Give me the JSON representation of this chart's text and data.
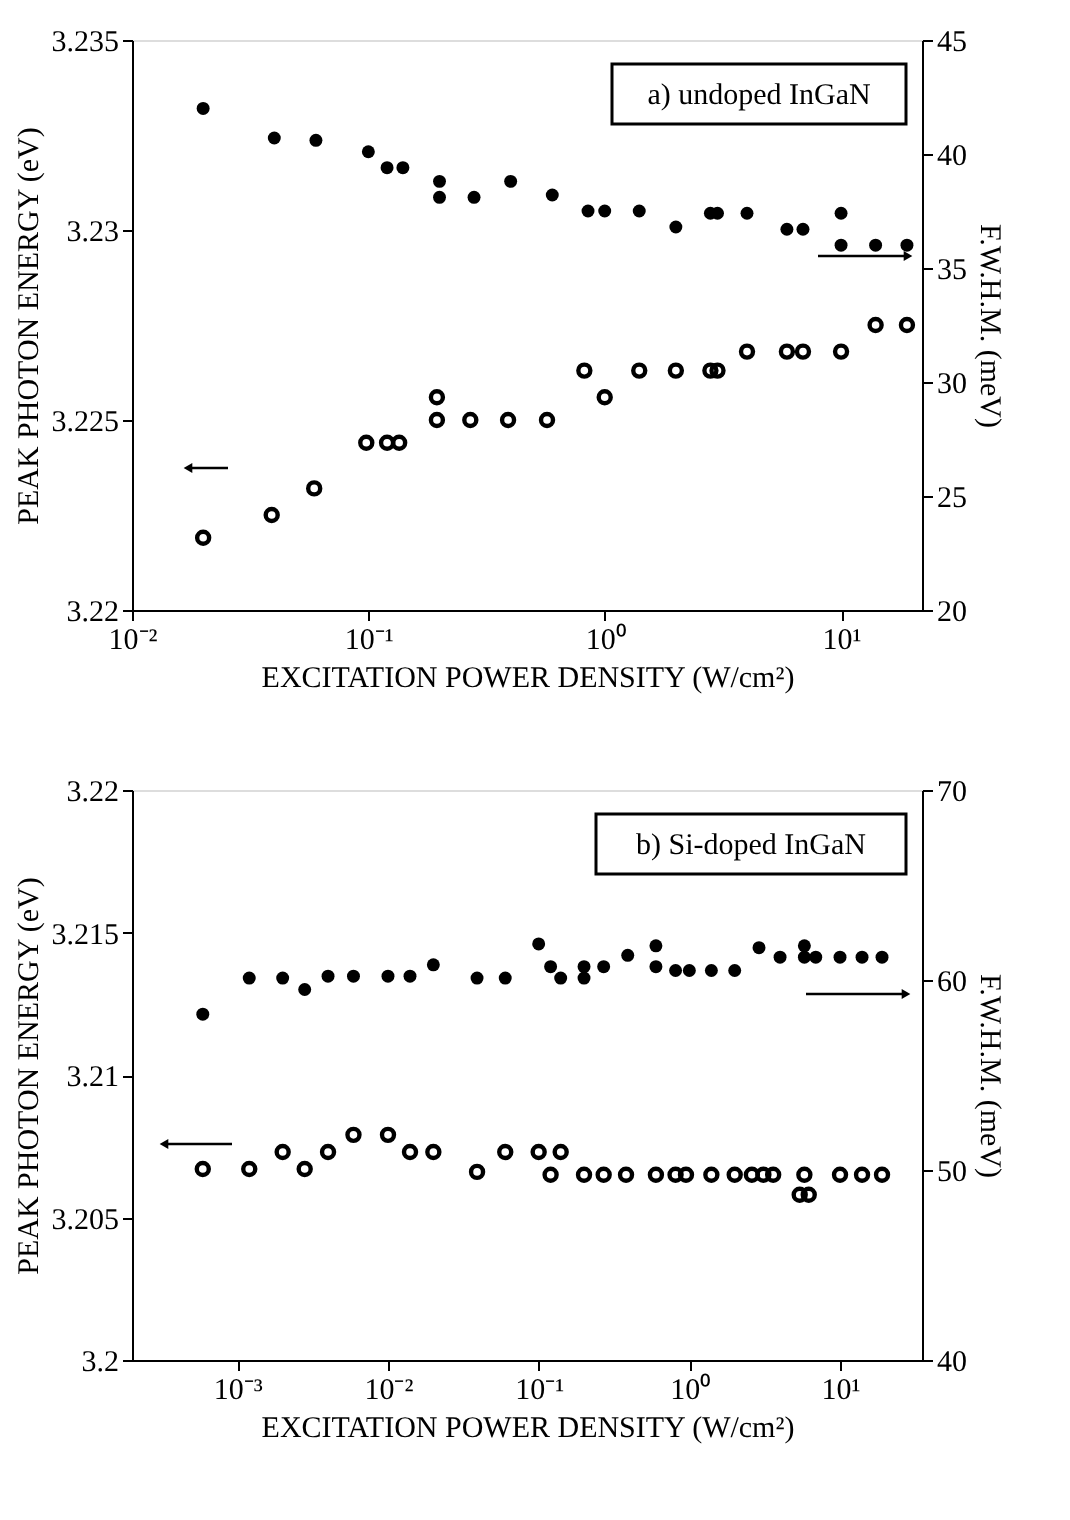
{
  "chart_data": [
    {
      "type": "scatter",
      "annotations": [
        "a) undoped InGaN"
      ],
      "xlabel": "EXCITATION POWER DENSITY (W/cm²)",
      "ylabel": "PEAK PHOTON ENERGY (eV)",
      "y2label": "F.W.H.M. (meV)",
      "log": "x",
      "grid": false,
      "marker": "circle",
      "xlim": [
        0.01,
        22
      ],
      "xticks": [
        {
          "value": 0.01,
          "label": "10⁻²"
        },
        {
          "value": 0.1,
          "label": "10⁻¹"
        },
        {
          "value": 1,
          "label": "10⁰"
        },
        {
          "value": 10,
          "label": "10¹"
        }
      ],
      "ylim": [
        3.22,
        3.235
      ],
      "yticks": [
        3.22,
        3.225,
        3.23,
        3.235
      ],
      "y2lim": [
        20,
        45
      ],
      "y2ticks": [
        20,
        25,
        30,
        35,
        40,
        45
      ],
      "series": [
        {
          "color": "#000000",
          "axis": "y",
          "x": [
            0.02,
            0.039,
            0.059,
            0.098,
            0.12,
            0.135,
            0.195,
            0.195,
            0.27,
            0.39,
            0.57,
            0.82,
            1.0,
            1.4,
            2.0,
            2.8,
            3.0,
            4.0,
            5.9,
            6.9,
            10,
            14,
            19
          ],
          "values": [
            3.2219,
            3.2225,
            3.2232,
            3.2244,
            3.2244,
            3.2244,
            3.2256,
            3.225,
            3.225,
            3.225,
            3.225,
            3.2263,
            3.2256,
            3.2263,
            3.2263,
            3.2263,
            3.2263,
            3.2268,
            3.2268,
            3.2268,
            3.2268,
            3.2275,
            3.2275
          ]
        },
        {
          "color": "#000000",
          "axis": "y2",
          "x": [
            0.02,
            0.04,
            0.06,
            0.1,
            0.12,
            0.14,
            0.2,
            0.2,
            0.28,
            0.4,
            0.6,
            0.85,
            1.0,
            1.4,
            2.0,
            2.8,
            3.0,
            4.0,
            5.9,
            6.9,
            10,
            10,
            14,
            19
          ],
          "values": [
            42.0,
            40.7,
            40.6,
            40.1,
            39.4,
            39.4,
            38.8,
            38.1,
            38.1,
            38.8,
            38.2,
            37.5,
            37.5,
            37.5,
            36.8,
            37.4,
            37.4,
            37.4,
            36.7,
            36.7,
            37.4,
            36.0,
            36.0,
            36.0
          ]
        }
      ]
    },
    {
      "type": "scatter",
      "annotations": [
        "b) Si-doped InGaN"
      ],
      "xlabel": "EXCITATION POWER DENSITY (W/cm²)",
      "ylabel": "PEAK PHOTON ENERGY (eV)",
      "y2label": "F.W.H.M. (meV)",
      "log": "x",
      "grid": false,
      "marker": "circle",
      "xlim": [
        0.0002,
        35
      ],
      "xticks": [
        {
          "value": 0.001,
          "label": "10⁻³"
        },
        {
          "value": 0.01,
          "label": "10⁻²"
        },
        {
          "value": 0.1,
          "label": "10⁻¹"
        },
        {
          "value": 1,
          "label": "10⁰"
        },
        {
          "value": 10,
          "label": "10¹"
        }
      ],
      "ylim": [
        3.2,
        3.22
      ],
      "yticks": [
        3.2,
        3.205,
        3.21,
        3.215,
        3.22
      ],
      "y2lim": [
        40,
        70
      ],
      "y2ticks": [
        40,
        50,
        60,
        70
      ],
      "series": [
        {
          "color": "#000000",
          "axis": "y",
          "x": [
            0.00059,
            0.0012,
            0.002,
            0.0028,
            0.004,
            0.0059,
            0.01,
            0.014,
            0.02,
            0.039,
            0.06,
            0.1,
            0.12,
            0.14,
            0.2,
            0.27,
            0.38,
            0.6,
            0.81,
            0.95,
            1.4,
            2.0,
            2.6,
            3.1,
            3.6,
            5.8,
            5.4,
            6.2,
            10,
            14,
            19
          ],
          "values": [
            3.2067,
            3.2067,
            3.2073,
            3.2067,
            3.2073,
            3.2079,
            3.2079,
            3.2073,
            3.2073,
            3.2066,
            3.2073,
            3.2073,
            3.2065,
            3.2073,
            3.2065,
            3.2065,
            3.2065,
            3.2065,
            3.2065,
            3.2065,
            3.2065,
            3.2065,
            3.2065,
            3.2065,
            3.2065,
            3.2065,
            3.2058,
            3.2058,
            3.2065,
            3.2065,
            3.2065
          ]
        },
        {
          "color": "#000000",
          "axis": "y2",
          "x": [
            0.00059,
            0.0012,
            0.002,
            0.0028,
            0.004,
            0.0059,
            0.01,
            0.014,
            0.02,
            0.039,
            0.06,
            0.1,
            0.12,
            0.14,
            0.2,
            0.2,
            0.27,
            0.39,
            0.6,
            0.6,
            0.81,
            1.0,
            1.4,
            2.0,
            2.9,
            4.0,
            5.8,
            5.8,
            6.9,
            10,
            14,
            19
          ],
          "values": [
            58.2,
            60.1,
            60.1,
            59.5,
            60.2,
            60.2,
            60.2,
            60.2,
            60.8,
            60.1,
            60.1,
            61.9,
            60.7,
            60.1,
            60.7,
            60.1,
            60.7,
            61.3,
            61.8,
            60.7,
            60.5,
            60.5,
            60.5,
            60.5,
            61.7,
            61.2,
            61.8,
            61.2,
            61.2,
            61.2,
            61.2,
            61.2
          ]
        }
      ]
    }
  ]
}
